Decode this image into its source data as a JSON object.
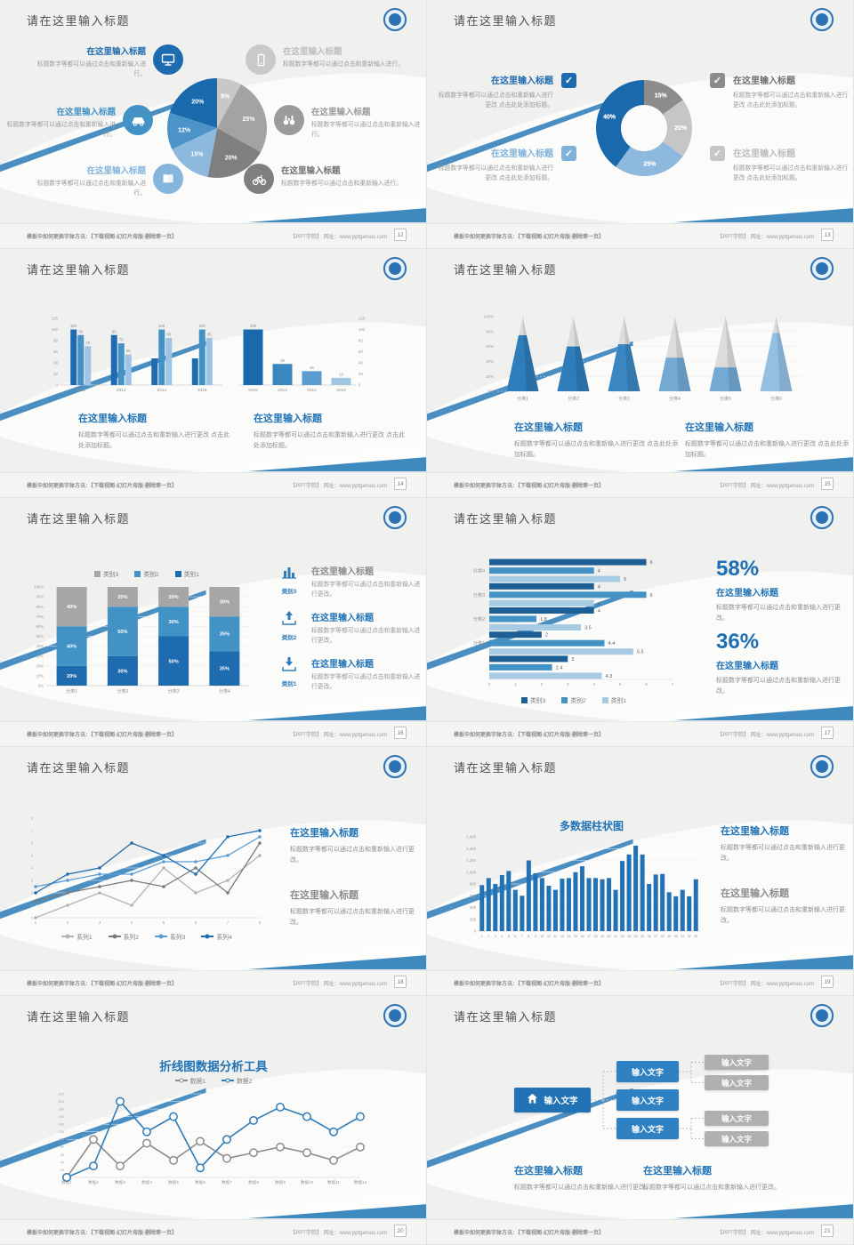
{
  "footer": {
    "left": "模板中如何更换字体方法：【下载视图-幻灯片母版-删除第一页】",
    "right": "【PPT学院】 网址：www.pptgenius.com"
  },
  "slides": [
    {
      "page_no": "12",
      "title": "请在这里输入标题",
      "left": [
        {
          "heading": "在这里输入标题",
          "body": "标题数字等都可以通过点击和重新输入进行。"
        },
        {
          "heading": "在这里输入标题",
          "body": "标题数字等都可以通过点击和重新输入进行。"
        },
        {
          "heading": "在这里输入标题",
          "body": "标题数字等都可以通过点击和重新输入进行。"
        }
      ],
      "right": [
        {
          "heading": "在这里输入标题",
          "body": "标题数字等都可以通过点击和重新输入进行。"
        },
        {
          "heading": "在这里输入标题",
          "body": "标题数字等都可以通过点击和重新输入进行。"
        },
        {
          "heading": "在这里输入标题",
          "body": "标题数字等都可以通过点击和重新输入进行。"
        }
      ]
    },
    {
      "page_no": "13",
      "title": "请在这里输入标题",
      "left": [
        {
          "heading": "在这里输入标题",
          "body": "标题数字等都可以通过点击和重新输入进行更改 点击此处添加标题。"
        },
        {
          "heading": "在这里输入标题",
          "body": "标题数字等都可以通过点击和重新输入进行更改 点击此处添加标题。"
        }
      ],
      "right": [
        {
          "heading": "在这里输入标题",
          "body": "标题数字等都可以通过点击和重新输入进行更改 点击此处添加标题。"
        },
        {
          "heading": "在这里输入标题",
          "body": "标题数字等都可以通过点击和重新输入进行更改 点击此处添加标题。"
        }
      ]
    },
    {
      "page_no": "14",
      "title": "请在这里输入标题",
      "blocks": [
        {
          "heading": "在这里输入标题",
          "body": "标题数字等都可以通过点击和重新输入进行更改 点击此处添加标题。"
        },
        {
          "heading": "在这里输入标题",
          "body": "标题数字等都可以通过点击和重新输入进行更改 点击此处添加标题。"
        }
      ]
    },
    {
      "page_no": "15",
      "title": "请在这里输入标题",
      "blocks": [
        {
          "heading": "在这里输入标题",
          "body": "标题数字等都可以通过点击和重新输入进行更改 点击此处添加标题。"
        },
        {
          "heading": "在这里输入标题",
          "body": "标题数字等都可以通过点击和重新输入进行更改 点击此处添加标题。"
        }
      ]
    },
    {
      "page_no": "16",
      "title": "请在这里输入标题",
      "items": [
        {
          "cat": "类别3",
          "heading": "在这里输入标题",
          "body": "标题数字等都可以通过点击和重新输入进行更改。"
        },
        {
          "cat": "类别2",
          "heading": "在这里输入标题",
          "body": "标题数字等都可以通过点击和重新输入进行更改。"
        },
        {
          "cat": "类别1",
          "heading": "在这里输入标题",
          "body": "标题数字等都可以通过点击和重新输入进行更改。"
        }
      ]
    },
    {
      "page_no": "17",
      "title": "请在这里输入标题",
      "stats": [
        {
          "pct": "58%",
          "heading": "在这里输入标题",
          "body": "标题数字等都可以通过点击和重新输入进行更改。"
        },
        {
          "pct": "36%",
          "heading": "在这里输入标题",
          "body": "标题数字等都可以通过点击和重新输入进行更改。"
        }
      ]
    },
    {
      "page_no": "18",
      "title": "请在这里输入标题",
      "blocks": [
        {
          "heading": "在这里输入标题",
          "body": "标题数字等都可以通过点击和重新输入进行更改。"
        },
        {
          "heading": "在这里输入标题",
          "body": "标题数字等都可以通过点击和重新输入进行更改。"
        }
      ]
    },
    {
      "page_no": "19",
      "title": "请在这里输入标题",
      "blocks": [
        {
          "heading": "在这里输入标题",
          "body": "标题数字等都可以通过点击和重新输入进行更改。"
        },
        {
          "heading": "在这里输入标题",
          "body": "标题数字等都可以通过点击和重新输入进行更改。"
        }
      ]
    },
    {
      "page_no": "20",
      "title": "请在这里输入标题"
    },
    {
      "page_no": "21",
      "title": "请在这里输入标题",
      "blocks": [
        {
          "heading": "在这里输入标题",
          "body": "标题数字等都可以通过点击和重新输入进行更改。"
        },
        {
          "heading": "在这里输入标题",
          "body": "标题数字等都可以通过点击和重新输入进行更改。"
        }
      ]
    }
  ],
  "chart_data": [
    {
      "slide": 12,
      "type": "pie",
      "values": [
        8,
        25,
        20,
        15,
        12,
        20
      ],
      "labels": [
        "8%",
        "25%",
        "20%",
        "15%",
        "12%",
        "20%"
      ],
      "colors": [
        "#c8c8c8",
        "#a3a3a3",
        "#7f7f7f",
        "#8cb9dd",
        "#4b93c9",
        "#1a69ad"
      ]
    },
    {
      "slide": 13,
      "type": "pie",
      "subtype": "donut",
      "values": [
        15,
        20,
        25,
        40
      ],
      "labels": [
        "15%",
        "20%",
        "25%",
        "40%"
      ],
      "colors": [
        "#8c8c8c",
        "#c6c6c6",
        "#8cb9dd",
        "#1a69ad"
      ]
    },
    {
      "slide": 14,
      "type": "bar",
      "position": "left",
      "categories": [
        "2010",
        "2012",
        "2014",
        "2016"
      ],
      "ylim": [
        0,
        120
      ],
      "series": [
        {
          "name": "series1",
          "color": "#1e6bb0",
          "values": [
            100,
            90,
            48,
            48
          ],
          "labels": [
            "100",
            "90",
            "",
            ""
          ]
        },
        {
          "name": "series2",
          "color": "#4292c6",
          "values": [
            90,
            75,
            100,
            100
          ],
          "labels": [
            "90",
            "75",
            "100",
            "100"
          ]
        },
        {
          "name": "series3",
          "color": "#9dc3e6",
          "values": [
            70,
            55,
            85,
            85
          ],
          "labels": [
            "70",
            "55",
            "85",
            "85"
          ]
        }
      ]
    },
    {
      "slide": 14,
      "type": "bar",
      "position": "right",
      "categories": [
        "2016",
        "2014",
        "2012",
        "2010"
      ],
      "ylim": [
        0,
        120
      ],
      "axis_side": "right",
      "bar_colors": [
        "#1a69ad",
        "#3a87c0",
        "#5b9bd0",
        "#a0c6e2"
      ],
      "values": [
        100,
        38,
        25,
        13
      ],
      "labels": [
        "100",
        "38",
        "25",
        "13"
      ]
    },
    {
      "slide": 15,
      "type": "pyramid",
      "categories": [
        "分类1",
        "分类2",
        "分类3",
        "分类4",
        "分类5",
        "分类6"
      ],
      "fill_percent": [
        75,
        60,
        63,
        45,
        32,
        78
      ],
      "colors": [
        "#2e7cb9",
        "#2e7cb9",
        "#3a86c2",
        "#74a9d4",
        "#74a9d4",
        "#93bfe0"
      ],
      "yticks": [
        "0%",
        "20%",
        "40%",
        "60%",
        "80%",
        "100%"
      ]
    },
    {
      "slide": 16,
      "type": "stacked-bar-100",
      "categories": [
        "分类1",
        "分类2",
        "分类3",
        "分类4"
      ],
      "ylim": [
        0,
        100
      ],
      "series": [
        {
          "name": "类别1",
          "color": "#1e6bb0",
          "values": [
            20,
            30,
            50,
            35
          ]
        },
        {
          "name": "类别2",
          "color": "#4292c6",
          "values": [
            40,
            50,
            30,
            35
          ]
        },
        {
          "name": "类别3",
          "color": "#a6a6a6",
          "values": [
            40,
            20,
            20,
            30
          ]
        }
      ],
      "legend": [
        {
          "label": "类别3",
          "color": "#a6a6a6"
        },
        {
          "label": "类别2",
          "color": "#4292c6"
        },
        {
          "label": "类别1",
          "color": "#1e6bb0"
        }
      ]
    },
    {
      "slide": 17,
      "type": "hbar",
      "categories": [
        "分类4",
        "分类3",
        "分类2",
        "分类1",
        ""
      ],
      "xlim": [
        0,
        7
      ],
      "series": [
        {
          "name": "类别3",
          "color": "#1d5f94",
          "values": [
            6,
            4,
            4,
            2,
            3
          ]
        },
        {
          "name": "类别2",
          "color": "#4292c6",
          "values": [
            4,
            6,
            1.8,
            4.4,
            2.4
          ]
        },
        {
          "name": "类别1",
          "color": "#a6cbe3",
          "values": [
            5,
            4,
            3.5,
            5.5,
            4.3
          ]
        }
      ],
      "legend": [
        {
          "label": "类别3",
          "color": "#1d5f94"
        },
        {
          "label": "类别2",
          "color": "#4292c6"
        },
        {
          "label": "类别1",
          "color": "#a6cbe3"
        }
      ]
    },
    {
      "slide": 18,
      "type": "line",
      "x": [
        1,
        2,
        3,
        4,
        5,
        6,
        7,
        8
      ],
      "ylim": [
        0,
        8
      ],
      "series": [
        {
          "name": "系列1",
          "color": "#b3b3b3",
          "values": [
            0,
            1,
            2,
            1,
            4,
            2,
            3,
            5
          ]
        },
        {
          "name": "系列2",
          "color": "#7a7a7a",
          "values": [
            1.3,
            2,
            2.5,
            3,
            2.5,
            4,
            2,
            6
          ]
        },
        {
          "name": "系列3",
          "color": "#5b9bd5",
          "values": [
            2.5,
            3,
            3.5,
            3.5,
            4.5,
            4.5,
            5,
            6.5
          ]
        },
        {
          "name": "系列4",
          "color": "#1f6cb0",
          "values": [
            2,
            3.5,
            4,
            6,
            5,
            3.5,
            6.5,
            7
          ]
        }
      ],
      "legend": [
        {
          "label": "系列1",
          "color": "#b3b3b3"
        },
        {
          "label": "系列2",
          "color": "#7a7a7a"
        },
        {
          "label": "系列3",
          "color": "#5b9bd5"
        },
        {
          "label": "系列4",
          "color": "#1f6cb0"
        }
      ]
    },
    {
      "slide": 19,
      "type": "bar",
      "title": "多数据柱状图",
      "color": "#2272b5",
      "ylim": [
        0,
        1600
      ],
      "ytick_step": 200,
      "categories_range": [
        1,
        33
      ],
      "values": [
        780,
        900,
        800,
        950,
        1020,
        700,
        600,
        1200,
        980,
        900,
        770,
        700,
        890,
        900,
        1000,
        1100,
        900,
        900,
        880,
        900,
        700,
        1190,
        1300,
        1450,
        1300,
        800,
        960,
        970,
        660,
        590,
        700,
        590,
        880
      ]
    },
    {
      "slide": 20,
      "type": "line",
      "title": "折线图数据分析工具",
      "ylim": [
        0,
        220
      ],
      "ytick_step": 20,
      "categories": [
        "数据1",
        "数据2",
        "数据3",
        "数据4",
        "数据5",
        "数据6",
        "数据7",
        "数据8",
        "数据9",
        "数据10",
        "数据11",
        "数据12"
      ],
      "series": [
        {
          "name": "数据1",
          "color": "#8c8c8c",
          "values": [
            0,
            100,
            30,
            90,
            45,
            95,
            50,
            65,
            80,
            65,
            45,
            80
          ]
        },
        {
          "name": "数据2",
          "color": "#2e7cb9",
          "values": [
            0,
            30,
            200,
            120,
            160,
            25,
            100,
            150,
            185,
            160,
            120,
            160
          ]
        }
      ],
      "legend": [
        {
          "label": "数据1",
          "color": "#8c8c8c"
        },
        {
          "label": "数据2",
          "color": "#2e7cb9"
        }
      ]
    },
    {
      "slide": 21,
      "type": "diagram",
      "root_label": "输入文字",
      "branch_labels": [
        "输入文字",
        "输入文字",
        "输入文字"
      ],
      "leaf_labels": [
        "输入文字",
        "输入文字",
        "输入文字",
        "输入文字"
      ]
    }
  ]
}
